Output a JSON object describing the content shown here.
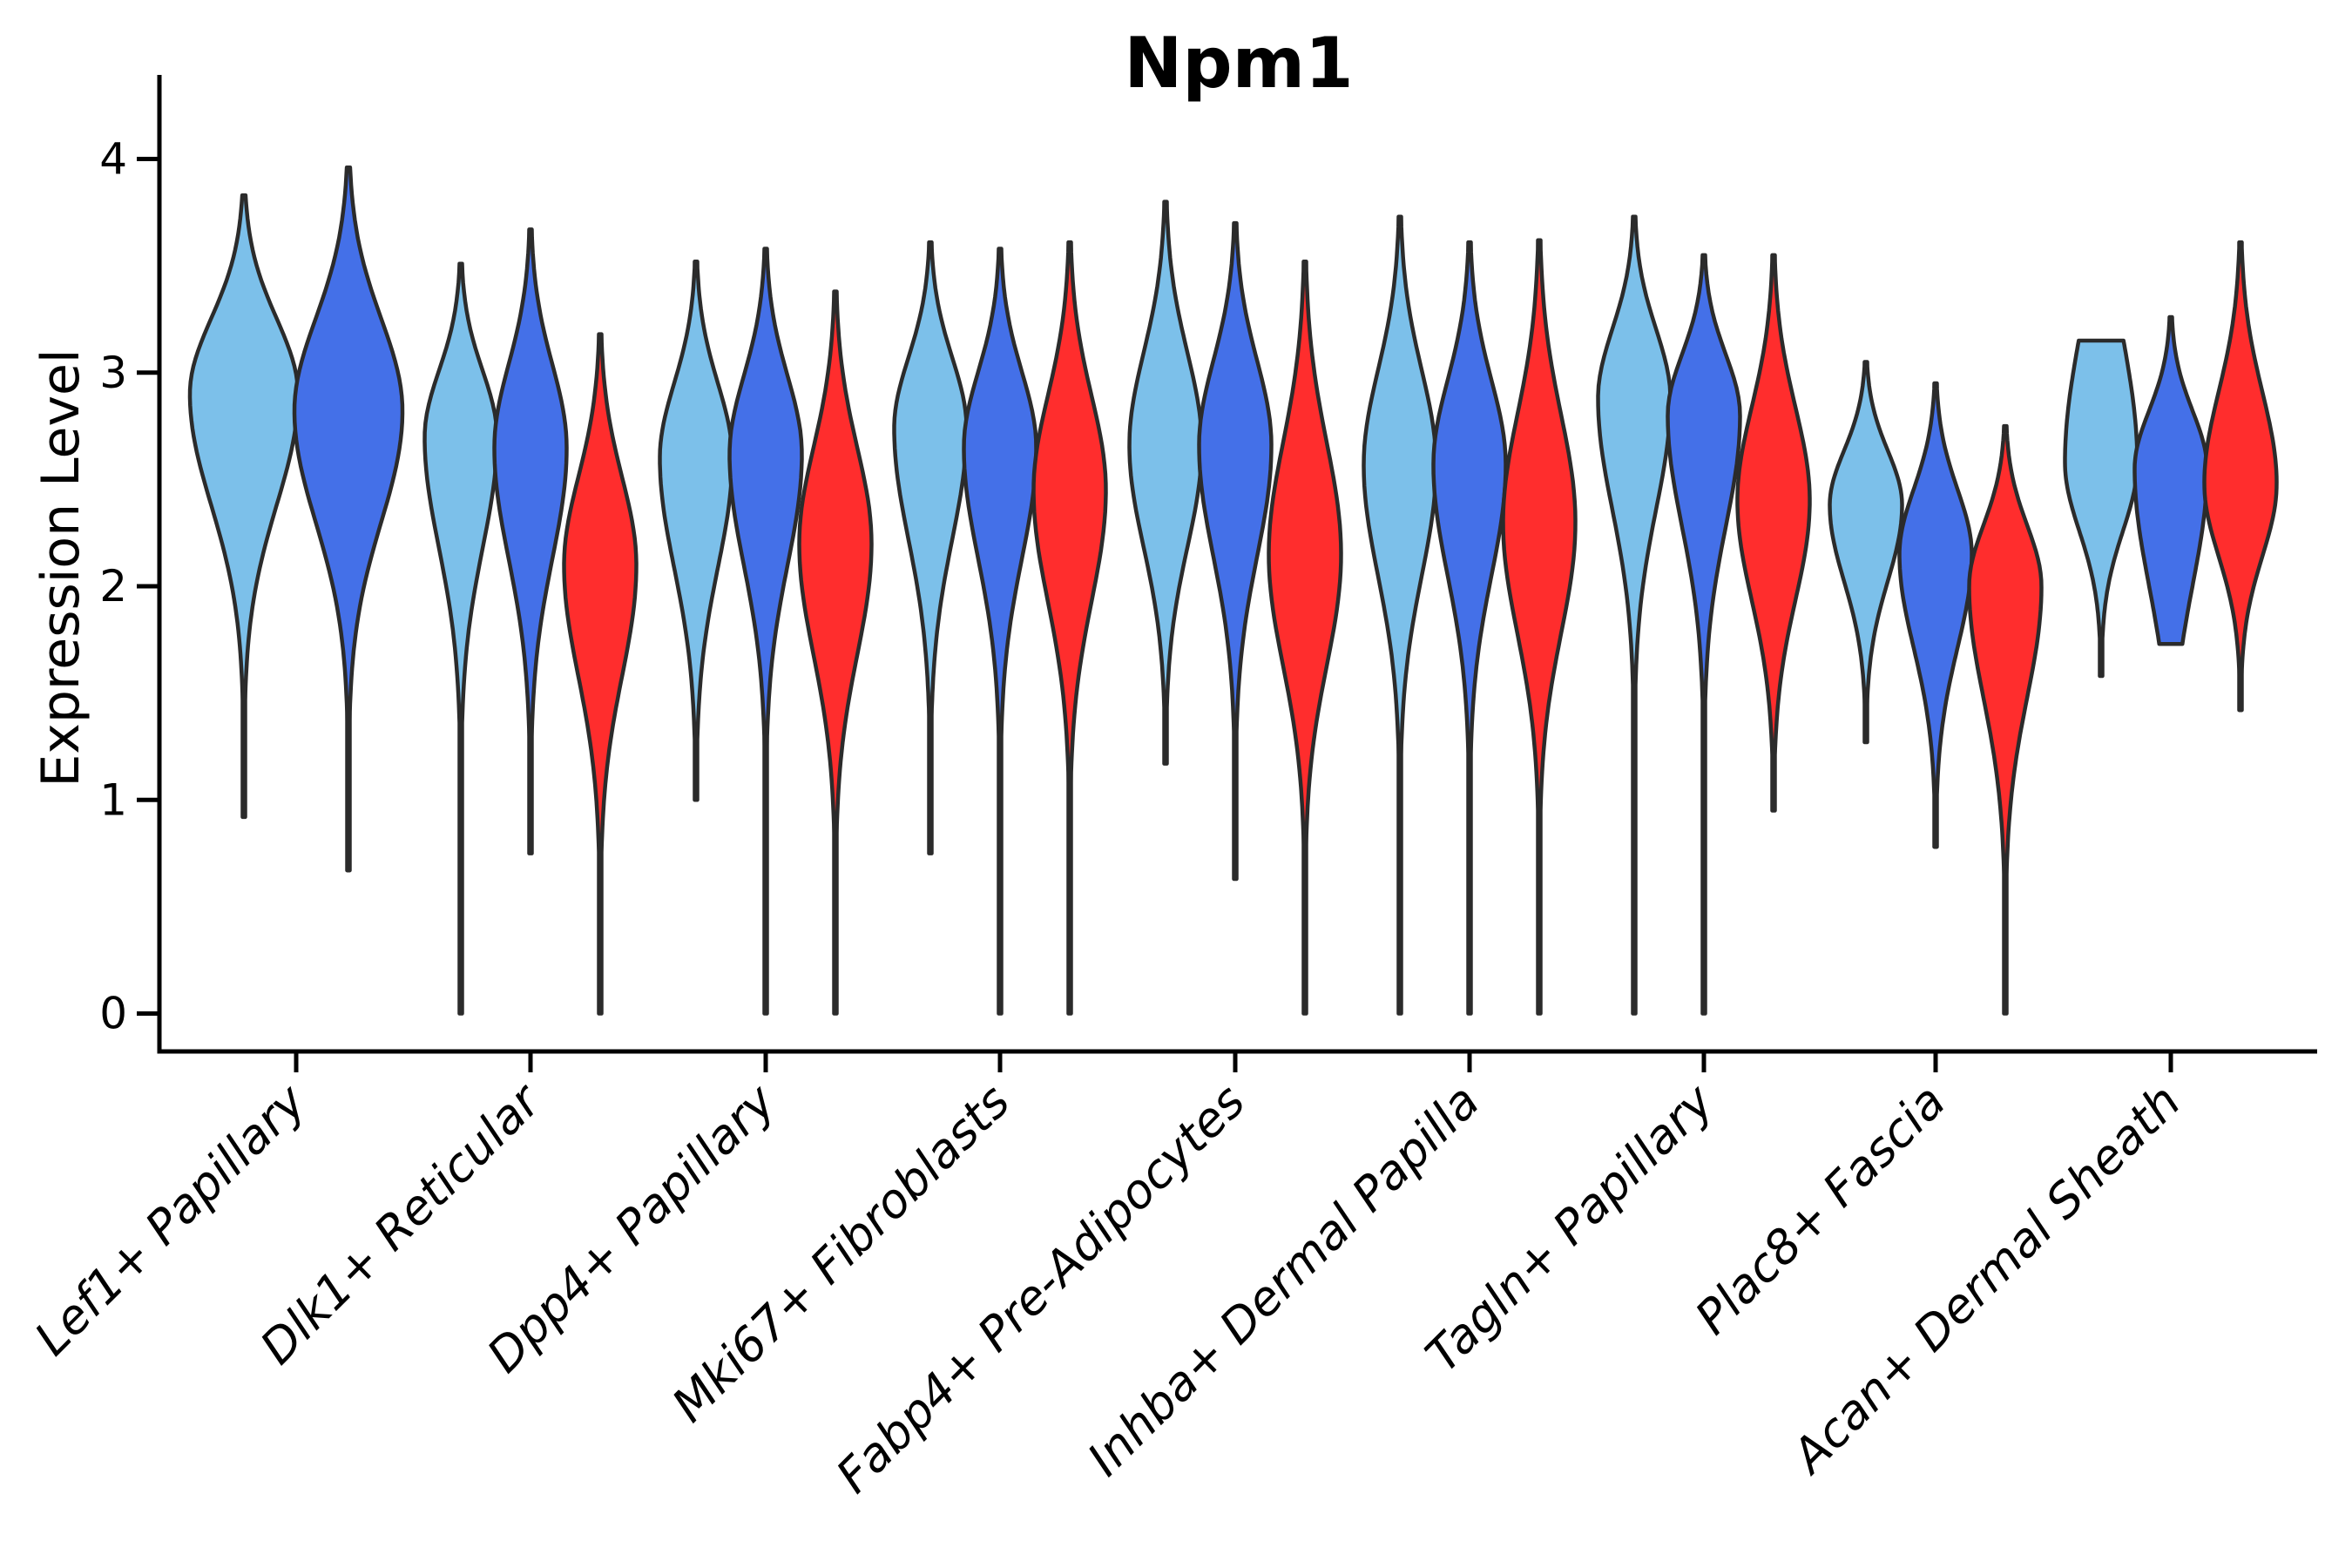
{
  "chart_data": {
    "type": "violin",
    "title": "Npm1",
    "ylabel": "Expression Level",
    "xlabel": "",
    "yticks": [
      0,
      1,
      2,
      3,
      4
    ],
    "ylim": [
      0,
      4.4
    ],
    "grid": false,
    "legend": "none",
    "palette": {
      "light_blue": "#7CC0EA",
      "blue": "#4470E8",
      "red": "#FF2D2D",
      "outline": "#2B2B2B",
      "axis": "#000000"
    },
    "categories": [
      "Lef1+ Papillary",
      "Dlk1+ Reticular",
      "Dpp4+ Papillary",
      "Mki67+ Fibroblasts",
      "Fabp4+ Pre-Adipocytes",
      "Inhba+ Dermal Papilla",
      "Tagln+ Papillary",
      "Plac8+ Fascia",
      "Acan+ Dermal Sheath"
    ],
    "groups": [
      {
        "category": "Lef1+ Papillary",
        "violins": [
          {
            "split": "light_blue",
            "max": 3.83,
            "mode": 2.9,
            "min": 0.92
          },
          {
            "split": "blue",
            "max": 3.96,
            "mode": 2.82,
            "min": 0.67
          }
        ]
      },
      {
        "category": "Dlk1+ Reticular",
        "violins": [
          {
            "split": "light_blue",
            "max": 3.51,
            "mode": 2.7,
            "min": 0.0
          },
          {
            "split": "blue",
            "max": 3.67,
            "mode": 2.65,
            "min": 0.75
          },
          {
            "split": "red",
            "max": 3.18,
            "mode": 2.1,
            "min": 0.0
          }
        ]
      },
      {
        "category": "Dpp4+ Papillary",
        "violins": [
          {
            "split": "light_blue",
            "max": 3.52,
            "mode": 2.6,
            "min": 1.0
          },
          {
            "split": "blue",
            "max": 3.58,
            "mode": 2.62,
            "min": 0.0
          },
          {
            "split": "red",
            "max": 3.38,
            "mode": 2.2,
            "min": 0.0
          }
        ]
      },
      {
        "category": "Mki67+ Fibroblasts",
        "violins": [
          {
            "split": "light_blue",
            "max": 3.61,
            "mode": 2.74,
            "min": 0.75
          },
          {
            "split": "blue",
            "max": 3.58,
            "mode": 2.65,
            "min": 0.0
          },
          {
            "split": "red",
            "max": 3.61,
            "mode": 2.45,
            "min": 0.0
          }
        ]
      },
      {
        "category": "Fabp4+ Pre-Adipocytes",
        "violins": [
          {
            "split": "light_blue",
            "max": 3.8,
            "mode": 2.66,
            "min": 1.17
          },
          {
            "split": "blue",
            "max": 3.7,
            "mode": 2.66,
            "min": 0.63
          },
          {
            "split": "red",
            "max": 3.52,
            "mode": 2.15,
            "min": 0.0
          }
        ]
      },
      {
        "category": "Inhba+ Dermal Papilla",
        "violins": [
          {
            "split": "light_blue",
            "max": 3.73,
            "mode": 2.57,
            "min": 0.0
          },
          {
            "split": "blue",
            "max": 3.61,
            "mode": 2.57,
            "min": 0.0
          },
          {
            "split": "red",
            "max": 3.62,
            "mode": 2.3,
            "min": 0.0
          }
        ]
      },
      {
        "category": "Tagln+ Papillary",
        "violins": [
          {
            "split": "light_blue",
            "max": 3.73,
            "mode": 2.88,
            "min": 0.0
          },
          {
            "split": "blue",
            "max": 3.55,
            "mode": 2.8,
            "min": 0.0
          },
          {
            "split": "red",
            "max": 3.55,
            "mode": 2.4,
            "min": 0.95
          }
        ]
      },
      {
        "category": "Plac8+ Fascia",
        "violins": [
          {
            "split": "light_blue",
            "max": 3.05,
            "mode": 2.38,
            "min": 1.27
          },
          {
            "split": "blue",
            "max": 2.95,
            "mode": 2.15,
            "min": 0.78
          },
          {
            "split": "red",
            "max": 2.75,
            "mode": 2.0,
            "min": 0.0
          }
        ]
      },
      {
        "category": "Acan+ Dermal Sheath",
        "violins": [
          {
            "split": "light_blue",
            "max": 3.15,
            "mode": 2.58,
            "min": 1.58,
            "cap_top": 0.62
          },
          {
            "split": "blue",
            "max": 3.26,
            "mode": 2.55,
            "min": 1.73,
            "cap_bot": 0.32
          },
          {
            "split": "red",
            "max": 3.61,
            "mode": 2.48,
            "min": 1.42
          }
        ]
      }
    ]
  }
}
